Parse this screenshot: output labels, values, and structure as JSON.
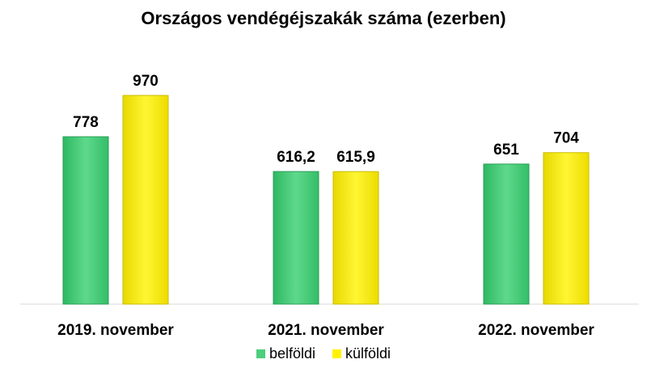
{
  "chart_data": {
    "type": "bar",
    "title": "Országos vendégéjszakák száma (ezerben)",
    "categories": [
      "2019. november",
      "2021. november",
      "2022. november"
    ],
    "series": [
      {
        "name": "belföldi",
        "values": [
          778,
          616.2,
          651
        ],
        "labels": [
          "778",
          "616,2",
          "651"
        ],
        "color": "#4CCF7E"
      },
      {
        "name": "külföldi",
        "values": [
          970,
          615.9,
          704
        ],
        "labels": [
          "970",
          "615,9",
          "704"
        ],
        "color": "#FFF200"
      }
    ],
    "ylim": [
      0,
      1000
    ],
    "grid": false,
    "legend_position": "bottom"
  }
}
